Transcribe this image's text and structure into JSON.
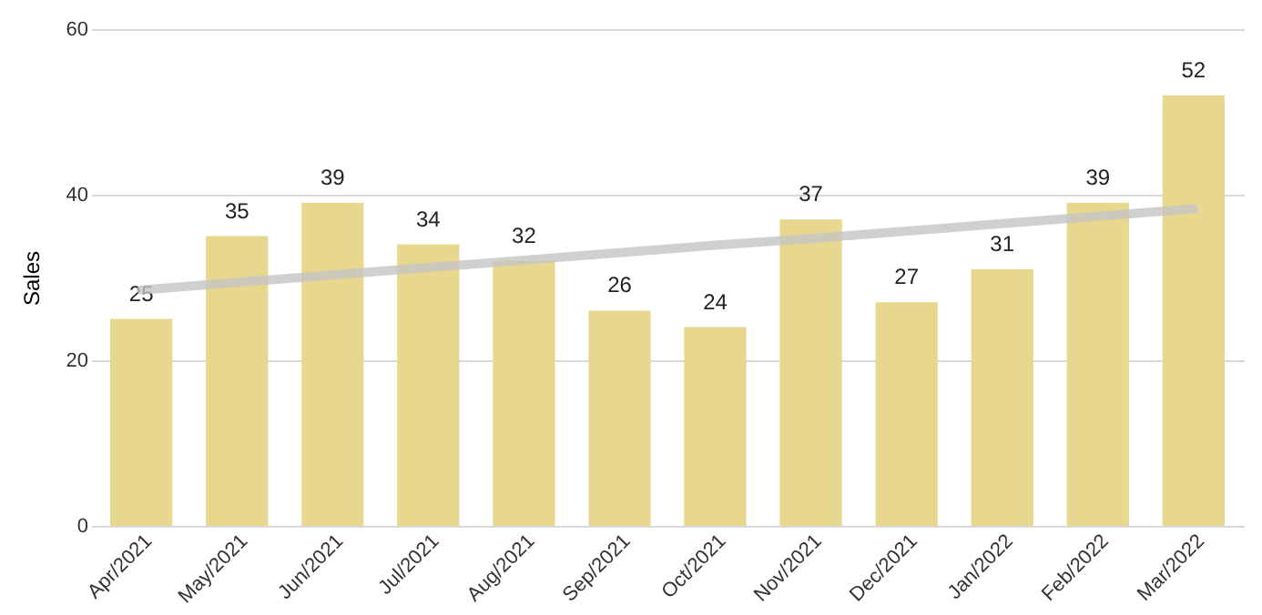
{
  "chart_data": {
    "type": "bar",
    "ylabel": "Sales",
    "categories": [
      "Apr/2021",
      "May/2021",
      "Jun/2021",
      "Jul/2021",
      "Aug/2021",
      "Sep/2021",
      "Oct/2021",
      "Nov/2021",
      "Dec/2021",
      "Jan/2022",
      "Feb/2022",
      "Mar/2022"
    ],
    "series": [
      {
        "color": "#e8d78f",
        "values": [
          25,
          35,
          39,
          34,
          32,
          26,
          24,
          37,
          27,
          31,
          39,
          52
        ],
        "value_labels": [
          "25",
          "35",
          "39",
          "34",
          "32",
          "26",
          "24",
          "37",
          "27",
          "31",
          "39",
          "52"
        ]
      },
      {
        "type": "line",
        "color": "#c4c4c4",
        "values": [
          28.5,
          29.4,
          30.3,
          31.2,
          32.1,
          33.0,
          33.9,
          34.7,
          35.6,
          36.5,
          37.4,
          38.3
        ]
      }
    ],
    "ylim": [
      0,
      60
    ],
    "yticks": [
      0,
      20,
      40,
      60
    ],
    "grid": "y"
  }
}
